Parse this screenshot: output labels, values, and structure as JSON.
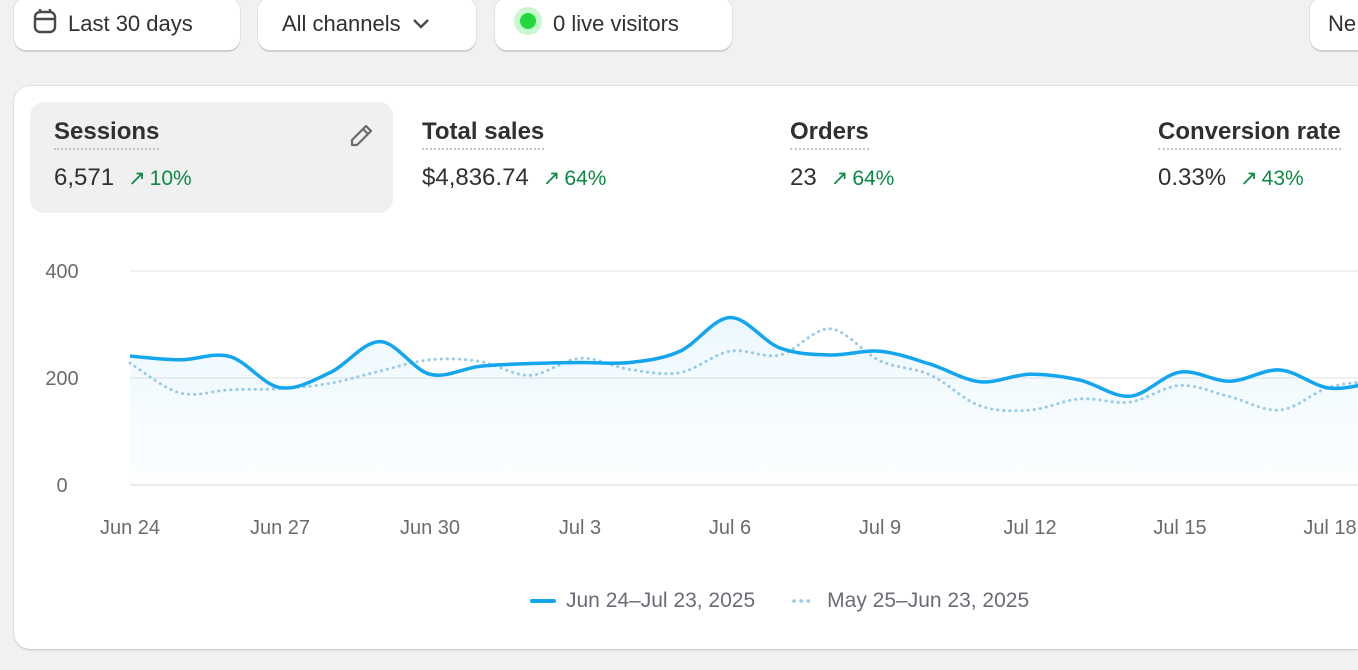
{
  "toolbar": {
    "date_range_label": "Last 30 days",
    "channels_label": "All channels",
    "live_visitors_label": "0 live visitors",
    "right_button_label": "Ne"
  },
  "metrics": [
    {
      "title": "Sessions",
      "value": "6,571",
      "change": "10%"
    },
    {
      "title": "Total sales",
      "value": "$4,836.74",
      "change": "64%"
    },
    {
      "title": "Orders",
      "value": "23",
      "change": "64%"
    },
    {
      "title": "Conversion rate",
      "value": "0.33%",
      "change": "43%"
    }
  ],
  "colors": {
    "current": "#13a6ef",
    "previous": "#94c9e8",
    "positive": "#0c8a43",
    "live_dot": "#22d83a"
  },
  "chart_data": {
    "type": "line",
    "title": "Sessions",
    "ylim": [
      0,
      400
    ],
    "y_ticks": [
      "0",
      "200",
      "400"
    ],
    "x_tick_labels": [
      "Jun 24",
      "Jun 27",
      "Jun 30",
      "Jul 3",
      "Jul 6",
      "Jul 9",
      "Jul 12",
      "Jul 15",
      "Jul 18"
    ],
    "x": [
      "Jun 24",
      "Jun 25",
      "Jun 26",
      "Jun 27",
      "Jun 28",
      "Jun 29",
      "Jun 30",
      "Jul 1",
      "Jul 2",
      "Jul 3",
      "Jul 4",
      "Jul 5",
      "Jul 6",
      "Jul 7",
      "Jul 8",
      "Jul 9",
      "Jul 10",
      "Jul 11",
      "Jul 12",
      "Jul 13",
      "Jul 14",
      "Jul 15",
      "Jul 16",
      "Jul 17",
      "Jul 18",
      "Jul 19"
    ],
    "series": [
      {
        "name": "Jun 24–Jul 23, 2025",
        "style": "solid",
        "values": [
          241,
          234,
          240,
          182,
          210,
          268,
          207,
          222,
          227,
          229,
          229,
          250,
          313,
          256,
          243,
          250,
          226,
          193,
          207,
          196,
          166,
          211,
          194,
          215,
          181,
          195
        ]
      },
      {
        "name": "May 25–Jun 23, 2025",
        "style": "dotted",
        "values": [
          228,
          172,
          178,
          180,
          190,
          213,
          234,
          231,
          205,
          237,
          216,
          210,
          250,
          243,
          292,
          232,
          206,
          148,
          140,
          161,
          155,
          186,
          165,
          140,
          183,
          195
        ]
      }
    ],
    "grid": true,
    "legend_position": "bottom"
  }
}
